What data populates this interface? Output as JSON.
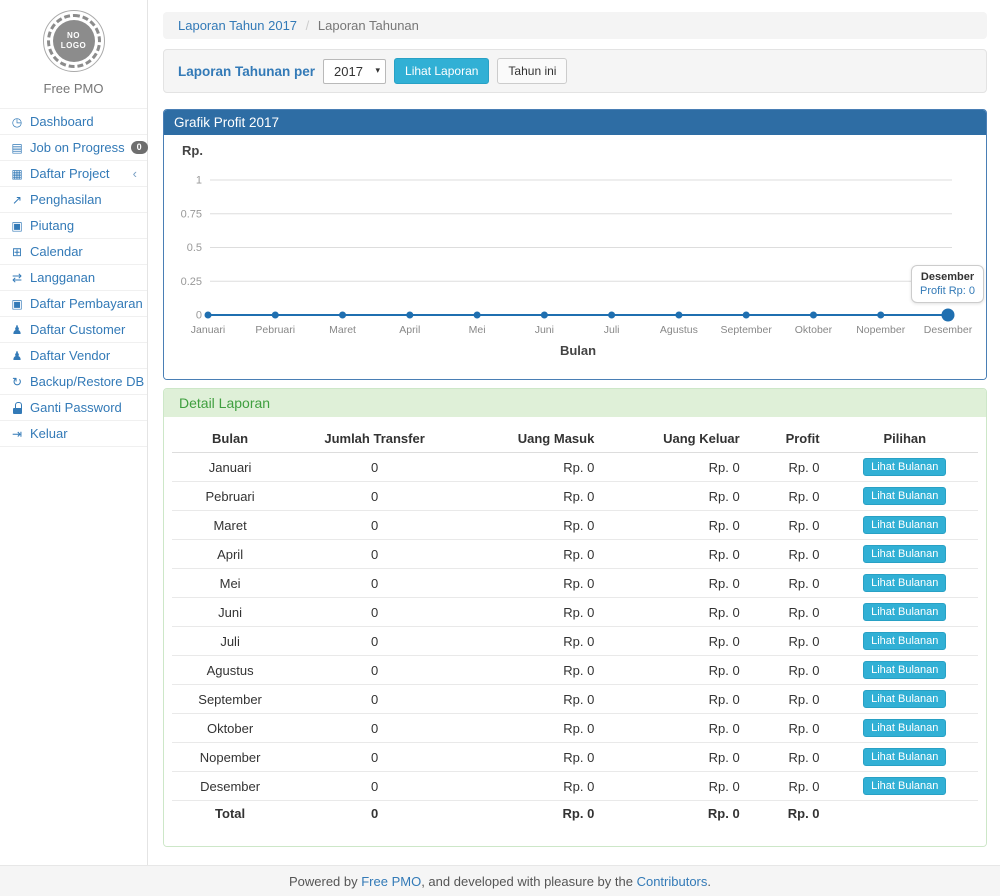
{
  "app": {
    "brand": "Free PMO",
    "logo_line1": "NO",
    "logo_line2": "LOGO"
  },
  "sidebar": {
    "items": [
      {
        "label": "Dashboard",
        "icon": "dashboard-icon"
      },
      {
        "label": "Job on Progress",
        "icon": "tasks-icon",
        "badge": "0"
      },
      {
        "label": "Daftar Project",
        "icon": "table-icon",
        "chevron": true
      },
      {
        "label": "Penghasilan",
        "icon": "chart-line-icon"
      },
      {
        "label": "Piutang",
        "icon": "money-icon"
      },
      {
        "label": "Calendar",
        "icon": "calendar-icon"
      },
      {
        "label": "Langganan",
        "icon": "exchange-icon"
      },
      {
        "label": "Daftar Pembayaran",
        "icon": "money-icon"
      },
      {
        "label": "Daftar Customer",
        "icon": "users-icon"
      },
      {
        "label": "Daftar Vendor",
        "icon": "users-icon"
      },
      {
        "label": "Backup/Restore DB",
        "icon": "refresh-icon"
      },
      {
        "label": "Ganti Password",
        "icon": "lock-icon"
      },
      {
        "label": "Keluar",
        "icon": "sign-out-icon"
      }
    ]
  },
  "breadcrumb": {
    "link": "Laporan Tahun 2017",
    "separator": "/",
    "current": "Laporan Tahunan"
  },
  "filter": {
    "label": "Laporan Tahunan per",
    "year": "2017",
    "view_button": "Lihat Laporan",
    "current_year_button": "Tahun ini"
  },
  "chart_data": {
    "type": "line",
    "title": "Grafik Profit 2017",
    "xlabel": "Bulan",
    "ylabel": "Rp.",
    "categories": [
      "Januari",
      "Pebruari",
      "Maret",
      "April",
      "Mei",
      "Juni",
      "Juli",
      "Agustus",
      "September",
      "Oktober",
      "Nopember",
      "Desember"
    ],
    "series": [
      {
        "name": "Profit",
        "values": [
          0,
          0,
          0,
          0,
          0,
          0,
          0,
          0,
          0,
          0,
          0,
          0
        ]
      }
    ],
    "yticks": [
      0,
      0.25,
      0.5,
      0.75,
      1
    ],
    "ylim": [
      0,
      1
    ],
    "grid": true,
    "legend": false,
    "line_color": "#1f6fb0",
    "tooltip": {
      "title": "Desember",
      "value": "Profit Rp: 0"
    }
  },
  "detail": {
    "title": "Detail Laporan",
    "columns": [
      "Bulan",
      "Jumlah Transfer",
      "Uang Masuk",
      "Uang Keluar",
      "Profit",
      "Pilihan"
    ],
    "action_label": "Lihat Bulanan",
    "rows": [
      {
        "bulan": "Januari",
        "jumlah_transfer": "0",
        "uang_masuk": "Rp. 0",
        "uang_keluar": "Rp. 0",
        "profit": "Rp. 0"
      },
      {
        "bulan": "Pebruari",
        "jumlah_transfer": "0",
        "uang_masuk": "Rp. 0",
        "uang_keluar": "Rp. 0",
        "profit": "Rp. 0"
      },
      {
        "bulan": "Maret",
        "jumlah_transfer": "0",
        "uang_masuk": "Rp. 0",
        "uang_keluar": "Rp. 0",
        "profit": "Rp. 0"
      },
      {
        "bulan": "April",
        "jumlah_transfer": "0",
        "uang_masuk": "Rp. 0",
        "uang_keluar": "Rp. 0",
        "profit": "Rp. 0"
      },
      {
        "bulan": "Mei",
        "jumlah_transfer": "0",
        "uang_masuk": "Rp. 0",
        "uang_keluar": "Rp. 0",
        "profit": "Rp. 0"
      },
      {
        "bulan": "Juni",
        "jumlah_transfer": "0",
        "uang_masuk": "Rp. 0",
        "uang_keluar": "Rp. 0",
        "profit": "Rp. 0"
      },
      {
        "bulan": "Juli",
        "jumlah_transfer": "0",
        "uang_masuk": "Rp. 0",
        "uang_keluar": "Rp. 0",
        "profit": "Rp. 0"
      },
      {
        "bulan": "Agustus",
        "jumlah_transfer": "0",
        "uang_masuk": "Rp. 0",
        "uang_keluar": "Rp. 0",
        "profit": "Rp. 0"
      },
      {
        "bulan": "September",
        "jumlah_transfer": "0",
        "uang_masuk": "Rp. 0",
        "uang_keluar": "Rp. 0",
        "profit": "Rp. 0"
      },
      {
        "bulan": "Oktober",
        "jumlah_transfer": "0",
        "uang_masuk": "Rp. 0",
        "uang_keluar": "Rp. 0",
        "profit": "Rp. 0"
      },
      {
        "bulan": "Nopember",
        "jumlah_transfer": "0",
        "uang_masuk": "Rp. 0",
        "uang_keluar": "Rp. 0",
        "profit": "Rp. 0"
      },
      {
        "bulan": "Desember",
        "jumlah_transfer": "0",
        "uang_masuk": "Rp. 0",
        "uang_keluar": "Rp. 0",
        "profit": "Rp. 0"
      }
    ],
    "total": {
      "bulan": "Total",
      "jumlah_transfer": "0",
      "uang_masuk": "Rp. 0",
      "uang_keluar": "Rp. 0",
      "profit": "Rp. 0"
    }
  },
  "footer": {
    "prefix": "Powered by ",
    "brand_link": "Free PMO",
    "middle": ", and developed with pleasure by the ",
    "contributors_link": "Contributors",
    "suffix": "."
  },
  "colors": {
    "primary_blue": "#2e6da4",
    "link_blue": "#337ab7",
    "info_cyan": "#31b0d5",
    "success_bg": "#dff0d8",
    "success_text": "#3f9f3f",
    "chart_line": "#1f6fb0",
    "badge_gray": "#6e6e6e"
  }
}
